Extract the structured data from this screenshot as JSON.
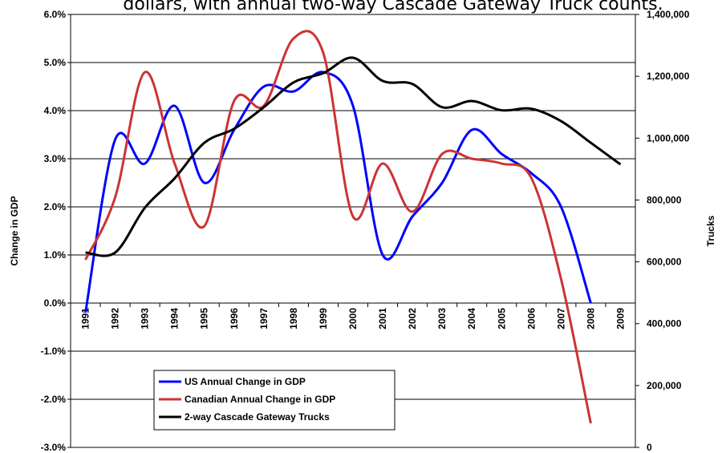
{
  "chart_data": {
    "type": "line",
    "title": "dollars, with annual two-way Cascade Gateway Truck counts.",
    "y_label": "Change in GDP",
    "y2_label": "Trucks",
    "categories": [
      "1991",
      "1992",
      "1993",
      "1994",
      "1995",
      "1996",
      "1997",
      "1998",
      "1999",
      "2000",
      "2001",
      "2002",
      "2003",
      "2004",
      "2005",
      "2006",
      "2007",
      "2008",
      "2009"
    ],
    "series": [
      {
        "name": "US Annual Change in GDP",
        "color": "#0000ff",
        "values": [
          -0.2,
          3.4,
          2.9,
          4.1,
          2.5,
          3.6,
          4.5,
          4.4,
          4.8,
          4.1,
          1.0,
          1.8,
          2.5,
          3.6,
          3.1,
          2.7,
          2.0,
          0.0,
          null
        ]
      },
      {
        "name": "Canadian Annual Change in GDP",
        "color": "#cc3333",
        "values": [
          0.9,
          2.2,
          4.8,
          2.9,
          1.6,
          4.2,
          4.1,
          5.5,
          5.2,
          1.8,
          2.9,
          1.9,
          3.1,
          3.0,
          2.9,
          2.6,
          0.5,
          -2.5,
          null
        ]
      },
      {
        "name": "2-way Cascade Gateway Trucks",
        "color": "#000000",
        "axis": "y2",
        "values": [
          630000,
          630000,
          775000,
          870000,
          985000,
          1030000,
          1100000,
          1180000,
          1210000,
          1260000,
          1185000,
          1175000,
          1100000,
          1120000,
          1090000,
          1095000,
          1055000,
          985000,
          915000
        ]
      }
    ],
    "ylim": [
      -3,
      6
    ],
    "yticks": [
      {
        "value": -3,
        "label": "-3.0%"
      },
      {
        "value": -2,
        "label": "-2.0%"
      },
      {
        "value": -1,
        "label": "-1.0%"
      },
      {
        "value": 0,
        "label": "0.0%"
      },
      {
        "value": 1,
        "label": "1.0%"
      },
      {
        "value": 2,
        "label": "2.0%"
      },
      {
        "value": 3,
        "label": "3.0%"
      },
      {
        "value": 4,
        "label": "4.0%"
      },
      {
        "value": 5,
        "label": "5.0%"
      },
      {
        "value": 6,
        "label": "6.0%"
      }
    ],
    "y2lim": [
      0,
      1400000
    ],
    "y2ticks": [
      0,
      {
        "value": 200000,
        "label": "200,000"
      },
      {
        "value": 400000,
        "label": "400,000"
      },
      {
        "value": 600000,
        "label": "600,000"
      },
      {
        "value": 800000,
        "label": "800,000"
      },
      {
        "value": 1000000,
        "label": "1,000,000"
      },
      {
        "value": 1200000,
        "label": "1,200,000"
      },
      {
        "value": 1400000,
        "label": "1,400,000"
      }
    ],
    "grid": true,
    "smooth": true
  }
}
